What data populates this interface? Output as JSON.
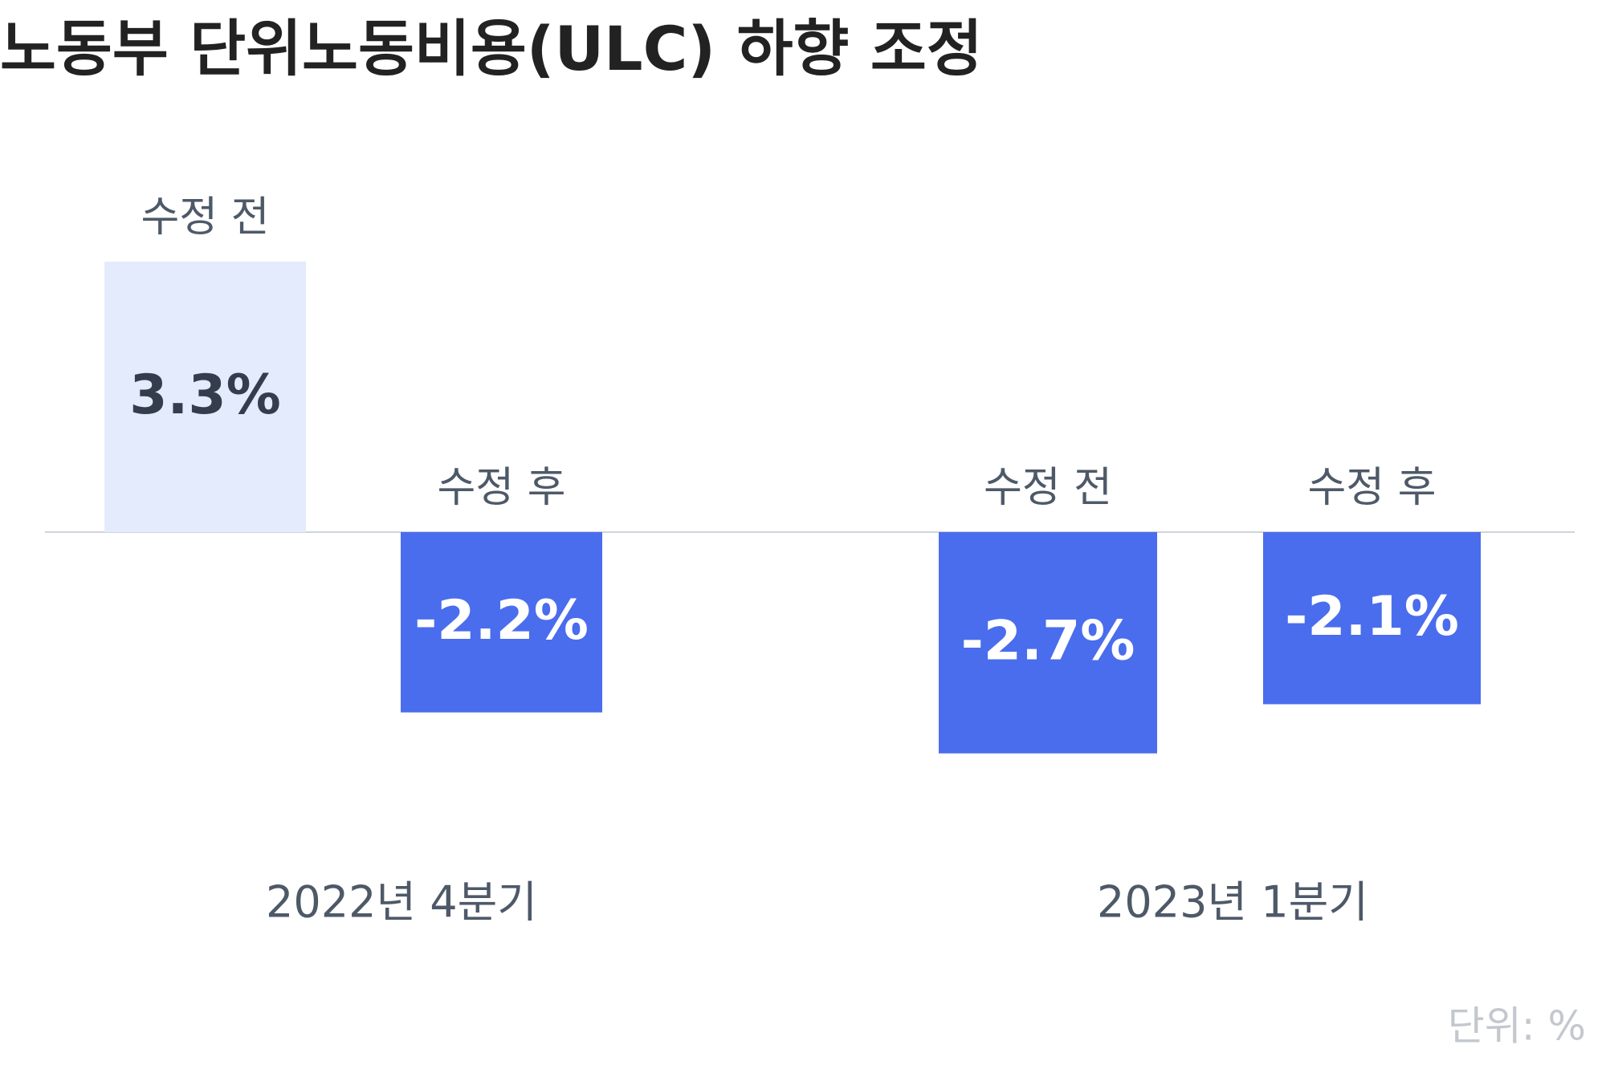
{
  "chart_data": {
    "type": "bar",
    "title": "노동부 단위노동비용(ULC) 하향 조정",
    "categories": [
      "2022년 4분기",
      "2023년 1분기"
    ],
    "series": [
      {
        "name": "수정 전",
        "values": [
          3.3,
          -2.7
        ],
        "value_labels": [
          "3.3%",
          "-2.7%"
        ],
        "colors": [
          "#e3ebfc",
          "#4a6ded"
        ]
      },
      {
        "name": "수정 후",
        "values": [
          -2.2,
          -2.1
        ],
        "value_labels": [
          "-2.2%",
          "-2.1%"
        ],
        "colors": [
          "#4a6ded",
          "#4a6ded"
        ]
      }
    ],
    "unit_note": "단위: %"
  }
}
